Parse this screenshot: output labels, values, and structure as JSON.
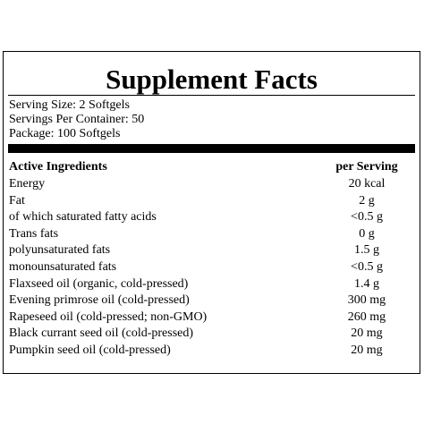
{
  "title": "Supplement Facts",
  "serving": [
    "Serving Size: 2 Softgels",
    "Servings Per Container: 50",
    "Package: 100 Softgels"
  ],
  "table": {
    "header": [
      "Active Ingredients",
      "per Serving"
    ],
    "rows": [
      [
        "Energy",
        "20 kcal"
      ],
      [
        "Fat",
        "2 g"
      ],
      [
        "of which saturated fatty acids",
        "<0.5 g"
      ],
      [
        "Trans fats",
        "0 g"
      ],
      [
        "polyunsaturated fats",
        "1.5 g"
      ],
      [
        "monounsaturated fats",
        "<0.5 g"
      ],
      [
        "Flaxseed oil (organic, cold-pressed)",
        "1.4 g"
      ],
      [
        "Evening primrose oil (cold-pressed)",
        "300 mg"
      ],
      [
        "Rapeseed oil (cold-pressed; non-GMO)",
        "260 mg"
      ],
      [
        "Black currant seed oil (cold-pressed)",
        "20 mg"
      ],
      [
        "Pumpkin seed oil (cold-pressed)",
        "20 mg"
      ]
    ]
  }
}
